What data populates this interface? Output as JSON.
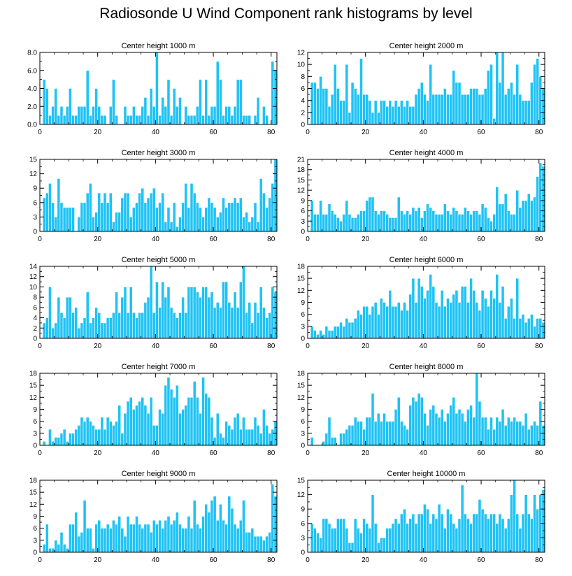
{
  "figure_title": "Radiosonde U Wind Component rank histograms by level",
  "colors": {
    "bar_fill": "#1ec3f5",
    "bar_stroke": "#ffffff",
    "axis": "#000000"
  },
  "chart_data": [
    {
      "type": "bar",
      "title": "Center height 1000 m",
      "xlim": [
        0,
        82
      ],
      "xticks": [
        "0",
        "20",
        "40",
        "60",
        "80"
      ],
      "ylim": [
        0,
        8
      ],
      "yticks": [
        "0.0",
        "2.0",
        "4.0",
        "6.0",
        "8.0"
      ],
      "values": [
        0,
        5,
        4,
        1,
        2,
        4,
        1,
        2,
        1,
        2,
        4,
        1,
        1,
        2,
        2,
        2,
        6,
        1,
        2,
        4,
        2,
        1,
        1,
        0,
        2,
        5,
        1,
        0,
        0,
        2,
        1,
        1,
        2,
        1,
        1,
        2,
        3,
        1,
        4,
        2,
        8,
        1,
        3,
        2,
        5,
        1,
        4,
        2,
        3,
        0,
        2,
        1,
        1,
        1,
        2,
        5,
        1,
        5,
        1,
        2,
        2,
        7,
        5,
        1,
        2,
        2,
        1,
        2,
        5,
        5,
        1,
        1,
        1,
        0,
        1,
        3,
        0,
        2,
        1,
        0,
        7,
        6
      ]
    },
    {
      "type": "bar",
      "title": "Center height 2000 m",
      "xlim": [
        0,
        82
      ],
      "xticks": [
        "0",
        "20",
        "40",
        "60",
        "80"
      ],
      "ylim": [
        0,
        12
      ],
      "yticks": [
        "0",
        "2",
        "4",
        "6",
        "8",
        "10",
        "12"
      ],
      "values": [
        0,
        7,
        7,
        6,
        8,
        6,
        6,
        3,
        5,
        10,
        6,
        4,
        4,
        10,
        2,
        7,
        6,
        5,
        11,
        5,
        5,
        4,
        2,
        4,
        2,
        4,
        4,
        3,
        4,
        3,
        4,
        3,
        4,
        3,
        4,
        3,
        3,
        5,
        6,
        7,
        5,
        4,
        10,
        5,
        5,
        5,
        5,
        6,
        5,
        5,
        9,
        7,
        7,
        5,
        5,
        5,
        6,
        6,
        6,
        5,
        5,
        6,
        9,
        10,
        1,
        12,
        7,
        12,
        5,
        6,
        7,
        5,
        10,
        5,
        4,
        4,
        4,
        7,
        10,
        11,
        8,
        6
      ]
    },
    {
      "type": "bar",
      "title": "Center height 3000 m",
      "xlim": [
        0,
        82
      ],
      "xticks": [
        "0",
        "20",
        "40",
        "60",
        "80"
      ],
      "ylim": [
        0,
        15
      ],
      "yticks": [
        "0",
        "3",
        "6",
        "9",
        "12",
        "15"
      ],
      "values": [
        0,
        7,
        8,
        10,
        6,
        3,
        11,
        6,
        5,
        5,
        5,
        5,
        0,
        3,
        6,
        6,
        8,
        10,
        3,
        4,
        8,
        6,
        8,
        6,
        8,
        2,
        4,
        4,
        7,
        8,
        8,
        3,
        5,
        6,
        8,
        9,
        6,
        7,
        8,
        9,
        5,
        6,
        8,
        2,
        5,
        2,
        6,
        1,
        3,
        6,
        10,
        5,
        10,
        8,
        6,
        5,
        3,
        5,
        7,
        6,
        5,
        3,
        4,
        7,
        5,
        6,
        6,
        7,
        6,
        7,
        3,
        4,
        2,
        3,
        6,
        2,
        11,
        8,
        5,
        7,
        10,
        15
      ]
    },
    {
      "type": "bar",
      "title": "Center height 4000 m",
      "xlim": [
        0,
        82
      ],
      "xticks": [
        "0",
        "20",
        "40",
        "60",
        "80"
      ],
      "ylim": [
        0,
        21
      ],
      "yticks": [
        "0",
        "3",
        "6",
        "9",
        "12",
        "15",
        "18",
        "21"
      ],
      "values": [
        0,
        9,
        5,
        5,
        9,
        5,
        5,
        8,
        6,
        5,
        4,
        3,
        5,
        9,
        5,
        4,
        4,
        5,
        6,
        6,
        9,
        10,
        10,
        6,
        5,
        6,
        6,
        5,
        4,
        4,
        4,
        10,
        6,
        5,
        6,
        5,
        7,
        6,
        7,
        4,
        6,
        8,
        7,
        6,
        5,
        5,
        5,
        8,
        6,
        5,
        7,
        6,
        5,
        5,
        7,
        6,
        5,
        6,
        6,
        5,
        8,
        7,
        4,
        3,
        5,
        13,
        8,
        8,
        11,
        6,
        5,
        5,
        12,
        7,
        9,
        9,
        11,
        9,
        10,
        16,
        20,
        19
      ]
    },
    {
      "type": "bar",
      "title": "Center height 5000 m",
      "xlim": [
        0,
        82
      ],
      "xticks": [
        "0",
        "20",
        "40",
        "60",
        "80"
      ],
      "ylim": [
        0,
        14
      ],
      "yticks": [
        "0",
        "2",
        "4",
        "6",
        "8",
        "10",
        "12",
        "14"
      ],
      "values": [
        0,
        3,
        4,
        10,
        2,
        3,
        8,
        5,
        4,
        8,
        8,
        5,
        6,
        2,
        3,
        4,
        9,
        3,
        4,
        6,
        5,
        3,
        3,
        4,
        4,
        5,
        9,
        5,
        8,
        10,
        5,
        10,
        5,
        4,
        5,
        5,
        7,
        8,
        14,
        5,
        11,
        6,
        11,
        8,
        10,
        6,
        5,
        4,
        5,
        8,
        5,
        10,
        10,
        10,
        9,
        8,
        10,
        10,
        8,
        9,
        6,
        7,
        6,
        11,
        11,
        7,
        6,
        9,
        6,
        11,
        14,
        5,
        7,
        3,
        7,
        5,
        10,
        6,
        4,
        5,
        10,
        9
      ]
    },
    {
      "type": "bar",
      "title": "Center height 6000 m",
      "xlim": [
        0,
        82
      ],
      "xticks": [
        "0",
        "20",
        "40",
        "60",
        "80"
      ],
      "ylim": [
        0,
        18
      ],
      "yticks": [
        "0",
        "3",
        "6",
        "9",
        "12",
        "15",
        "18"
      ],
      "values": [
        0,
        3,
        2,
        1,
        2,
        1,
        3,
        2,
        2,
        3,
        3,
        4,
        3,
        5,
        4,
        4,
        5,
        7,
        6,
        8,
        8,
        6,
        8,
        9,
        6,
        10,
        9,
        8,
        12,
        8,
        8,
        9,
        7,
        9,
        7,
        11,
        15,
        9,
        15,
        13,
        10,
        12,
        16,
        13,
        9,
        8,
        12,
        8,
        10,
        9,
        11,
        12,
        9,
        13,
        13,
        9,
        15,
        12,
        9,
        7,
        12,
        10,
        8,
        12,
        10,
        16,
        9,
        13,
        5,
        8,
        10,
        5,
        15,
        5,
        6,
        4,
        5,
        6,
        3,
        5,
        5,
        4
      ]
    },
    {
      "type": "bar",
      "title": "Center height 7000 m",
      "xlim": [
        0,
        82
      ],
      "xticks": [
        "0",
        "20",
        "40",
        "60",
        "80"
      ],
      "ylim": [
        0,
        18
      ],
      "yticks": [
        "0",
        "3",
        "6",
        "9",
        "12",
        "15",
        "18"
      ],
      "values": [
        0,
        1,
        0,
        4,
        1,
        2,
        2,
        3,
        4,
        1,
        3,
        3,
        4,
        5,
        7,
        6,
        7,
        6,
        5,
        4,
        4,
        7,
        4,
        7,
        6,
        5,
        6,
        10,
        3,
        8,
        11,
        12,
        9,
        10,
        11,
        12,
        10,
        8,
        12,
        5,
        5,
        9,
        8,
        15,
        17,
        14,
        12,
        15,
        8,
        9,
        10,
        12,
        12,
        16,
        12,
        8,
        17,
        13,
        12,
        7,
        2,
        8,
        3,
        2,
        6,
        5,
        4,
        7,
        8,
        4,
        7,
        4,
        4,
        4,
        7,
        5,
        3,
        9,
        5,
        3,
        4,
        6
      ]
    },
    {
      "type": "bar",
      "title": "Center height 8000 m",
      "xlim": [
        0,
        82
      ],
      "xticks": [
        "0",
        "20",
        "40",
        "60",
        "80"
      ],
      "ylim": [
        0,
        18
      ],
      "yticks": [
        "0",
        "3",
        "6",
        "9",
        "12",
        "15",
        "18"
      ],
      "values": [
        0,
        2,
        0,
        0,
        0,
        1,
        3,
        7,
        2,
        2,
        0,
        3,
        3,
        4,
        5,
        5,
        7,
        6,
        6,
        4,
        7,
        7,
        13,
        6,
        8,
        6,
        8,
        6,
        6,
        6,
        9,
        12,
        6,
        5,
        4,
        10,
        12,
        11,
        13,
        12,
        8,
        5,
        9,
        10,
        8,
        7,
        9,
        6,
        8,
        10,
        12,
        8,
        9,
        8,
        6,
        9,
        10,
        7,
        18,
        11,
        7,
        7,
        4,
        7,
        4,
        7,
        6,
        9,
        5,
        7,
        6,
        7,
        6,
        6,
        5,
        8,
        4,
        5,
        6,
        5,
        11,
        5
      ]
    },
    {
      "type": "bar",
      "title": "Center height 9000 m",
      "xlim": [
        0,
        82
      ],
      "xticks": [
        "0",
        "20",
        "40",
        "60",
        "80"
      ],
      "ylim": [
        0,
        18
      ],
      "yticks": [
        "0",
        "3",
        "6",
        "9",
        "12",
        "15",
        "18"
      ],
      "values": [
        0,
        2,
        7,
        1,
        1,
        3,
        2,
        5,
        2,
        1,
        7,
        7,
        10,
        4,
        5,
        13,
        6,
        6,
        1,
        7,
        8,
        6,
        6,
        7,
        6,
        8,
        7,
        9,
        6,
        4,
        9,
        7,
        7,
        9,
        7,
        6,
        7,
        7,
        5,
        8,
        7,
        8,
        6,
        8,
        9,
        7,
        8,
        10,
        7,
        6,
        6,
        9,
        6,
        13,
        7,
        6,
        9,
        12,
        10,
        13,
        14,
        8,
        12,
        8,
        7,
        14,
        11,
        7,
        6,
        8,
        13,
        5,
        5,
        6,
        4,
        4,
        4,
        3,
        4,
        5,
        17,
        14
      ]
    },
    {
      "type": "bar",
      "title": "Center height 10000 m",
      "xlim": [
        0,
        82
      ],
      "xticks": [
        "0",
        "20",
        "40",
        "60",
        "80"
      ],
      "ylim": [
        0,
        15
      ],
      "yticks": [
        "0",
        "3",
        "6",
        "9",
        "12",
        "15"
      ],
      "values": [
        0,
        6,
        5,
        4,
        3,
        7,
        7,
        6,
        5,
        5,
        7,
        7,
        7,
        5,
        2,
        2,
        7,
        5,
        4,
        7,
        6,
        5,
        12,
        6,
        2,
        3,
        3,
        5,
        5,
        6,
        7,
        6,
        8,
        9,
        6,
        7,
        8,
        6,
        8,
        8,
        10,
        9,
        6,
        8,
        7,
        10,
        8,
        5,
        9,
        8,
        6,
        5,
        7,
        14,
        8,
        7,
        6,
        8,
        8,
        11,
        9,
        8,
        7,
        8,
        8,
        6,
        8,
        7,
        5,
        7,
        12,
        15,
        8,
        5,
        8,
        12,
        8,
        7,
        12,
        9,
        12,
        13
      ]
    }
  ]
}
